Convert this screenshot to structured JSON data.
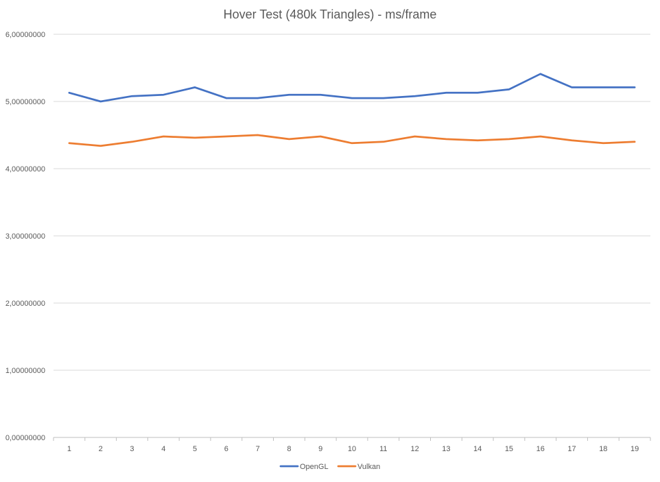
{
  "chart_data": {
    "type": "line",
    "title": "Hover Test (480k Triangles) - ms/frame",
    "xlabel": "",
    "ylabel": "",
    "categories": [
      "1",
      "2",
      "3",
      "4",
      "5",
      "6",
      "7",
      "8",
      "9",
      "10",
      "11",
      "12",
      "13",
      "14",
      "15",
      "16",
      "17",
      "18",
      "19"
    ],
    "y_ticks": [
      "0,00000000",
      "1,00000000",
      "2,00000000",
      "3,00000000",
      "4,00000000",
      "5,00000000",
      "6,00000000"
    ],
    "ylim": [
      0,
      6
    ],
    "grid": true,
    "legend_position": "bottom",
    "series": [
      {
        "name": "OpenGL",
        "color": "#4472c4",
        "values": [
          5.13,
          5.0,
          5.08,
          5.1,
          5.21,
          5.05,
          5.05,
          5.1,
          5.1,
          5.05,
          5.05,
          5.08,
          5.13,
          5.13,
          5.18,
          5.41,
          5.21,
          5.21,
          5.21
        ]
      },
      {
        "name": "Vulkan",
        "color": "#ed7d31",
        "values": [
          4.38,
          4.34,
          4.4,
          4.48,
          4.46,
          4.48,
          4.5,
          4.44,
          4.48,
          4.38,
          4.4,
          4.48,
          4.44,
          4.42,
          4.44,
          4.48,
          4.42,
          4.38,
          4.4
        ]
      }
    ]
  }
}
